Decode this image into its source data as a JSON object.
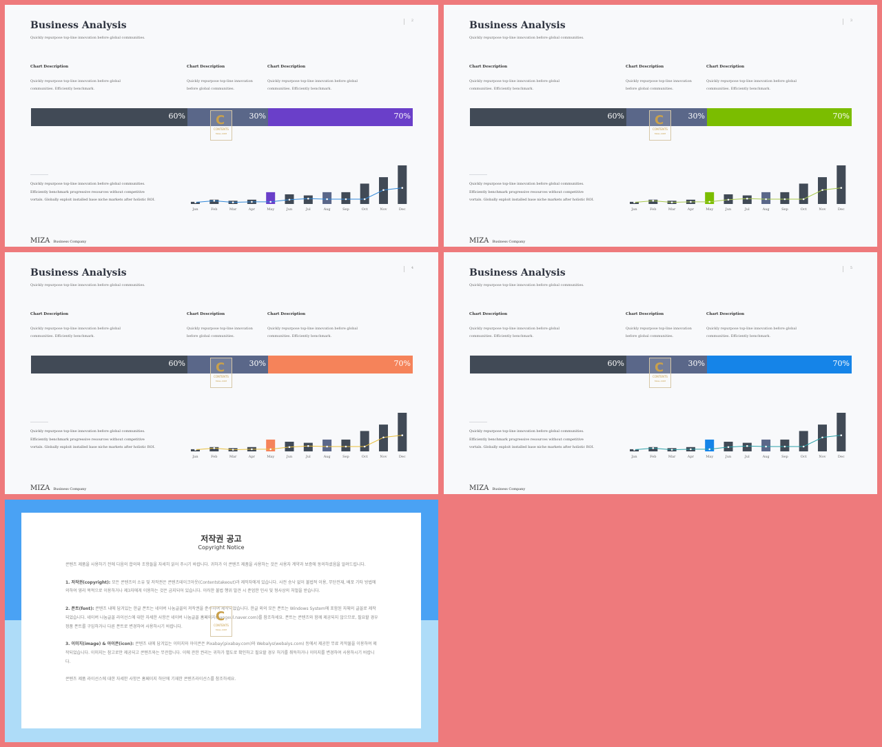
{
  "slides": [
    {
      "title": "Business Analysis",
      "subtitle": "Quickly repurpose top-line innovation before global communities.",
      "page": "2",
      "accent": "#6a3fc9",
      "line_color": "#2f87d8"
    },
    {
      "title": "Business Analysis",
      "subtitle": "Quickly repurpose top-line innovation before global communities.",
      "page": "3",
      "accent": "#7bbd00",
      "line_color": "#a7c84a"
    },
    {
      "title": "Business Analysis",
      "subtitle": "Quickly repurpose top-line innovation before global communities.",
      "page": "4",
      "accent": "#f5835a",
      "line_color": "#e8be3a"
    },
    {
      "title": "Business Analysis",
      "subtitle": "Quickly repurpose top-line innovation before global communities.",
      "page": "5",
      "accent": "#1584e8",
      "line_color": "#2aa1a8"
    }
  ],
  "descriptions": [
    {
      "heading": "Chart Description",
      "line1": "Quickly repurpose top-line innovation before global",
      "line2": "communities. Efficiently benchmark."
    },
    {
      "heading": "Chart Description",
      "line1": "Quickly repurpose top-line innovation",
      "line2": "before global communities."
    },
    {
      "heading": "Chart Description",
      "line1": "Quickly repurpose top-line innovation before global",
      "line2": "communities. Efficiently benchmark."
    }
  ],
  "bar": {
    "labels": [
      "60%",
      "30%",
      "70%"
    ],
    "dark_color": "#414a56",
    "mid_color": "#5a6789"
  },
  "body_text": {
    "line1": "Quickly repurpose top-line innovation before global communities.",
    "line2": "Efficiently benchmark progressive resources without competitive",
    "line3": "vortals. Globally exploit installed base niche markets after holistic ROI."
  },
  "brand": {
    "name": "MIZA",
    "tag": "Business Company"
  },
  "watermark": {
    "letter": "C",
    "line1": "CONTENTS",
    "line2": "MALL.COM"
  },
  "chart_data": {
    "type": "bar",
    "categories": [
      "Jan",
      "Feb",
      "Mar",
      "Apr",
      "May",
      "Jun",
      "Jul",
      "Aug",
      "Sep",
      "Oct",
      "Nov",
      "Dec"
    ],
    "series": [
      {
        "values": [
          2,
          4,
          3,
          4,
          11,
          9,
          8,
          11,
          11,
          19,
          25,
          36
        ]
      },
      {
        "values": [
          1.5,
          3,
          1.5,
          2,
          2,
          4,
          5,
          4.5,
          4.5,
          4.5,
          13,
          15
        ]
      }
    ],
    "highlight_index": 4,
    "bar_colors": {
      "default": "#414a56",
      "aug": "#5a6789"
    },
    "ylim": [
      0,
      36
    ]
  },
  "notice": {
    "title": "저작권 공고",
    "subtitle": "Copyright Notice",
    "intro": "콘텐츠 제품을 사용하기 전에 다음의 합의와 조항들을 자세히 읽어 주시기 바랍니다. 귀하가 이 콘텐츠 제품을 사용하는 것은 사용자 계약과 보증에 동의하셨음을 알려드립니다.",
    "p1_head": "1. 저작권(copyright):",
    "p1": " 모든 콘텐츠의 소유 및 저작권은 콘텐츠테이크아웃(Contentstakeout)과 제작자에게 있습니다. 사전 승낙 없이 불법적 이용, 무단전재, 배포 기타 방법에 의하여 영리 목적으로 이용하거나 제3자에게 이용하는 것은 금지되어 있습니다. 이러한 불법 행위 발견 시 준엄한 민사 및 형사상의 처벌을 받습니다.",
    "p2_head": "2. 폰트(font):",
    "p2": " 콘텐츠 내에 담겨있는 한글 폰트는 네이버 나눔글꼴의 저작권을 준수하여 제작되었습니다. 한글 외의 모든 폰트는 Windows System에 포함된 자체의 글꼴로 제작되었습니다. 네이버 나눔글꼴 라이선스에 대한 자세한 사항은 네이버 나눔글꼴 홈페이지(hangeul.naver.com)를 참조하세요. 폰트는 콘텐츠와 함께 제공되지 않으므로, 필요할 경우 정품 폰트를 구입하거나 다른 폰트로 변경하여 사용하시기 바랍니다.",
    "p3_head": "3. 이미지(image) & 아이콘(icon):",
    "p3": " 콘텐츠 내에 담겨있는 이미지와 아이콘은 Pixabay(pixabay.com)와 Webalys(webalys.com) 등에서 제공한 무료 저작물을 이용하여 제작되었습니다. 이미지는 참고로만 제공되고 콘텐츠와는 무관합니다. 이에 관한 권리는 귀하가 별도로 확인하고 필요할 경우 허가를 취득하거나 이미지를 변경하여 사용하시기 바랍니다.",
    "outro": "콘텐츠 제품 라이선스에 대한 자세한 사항은 홈페이지 하단에 기재한 콘텐츠라이선스를 참조하세요."
  }
}
